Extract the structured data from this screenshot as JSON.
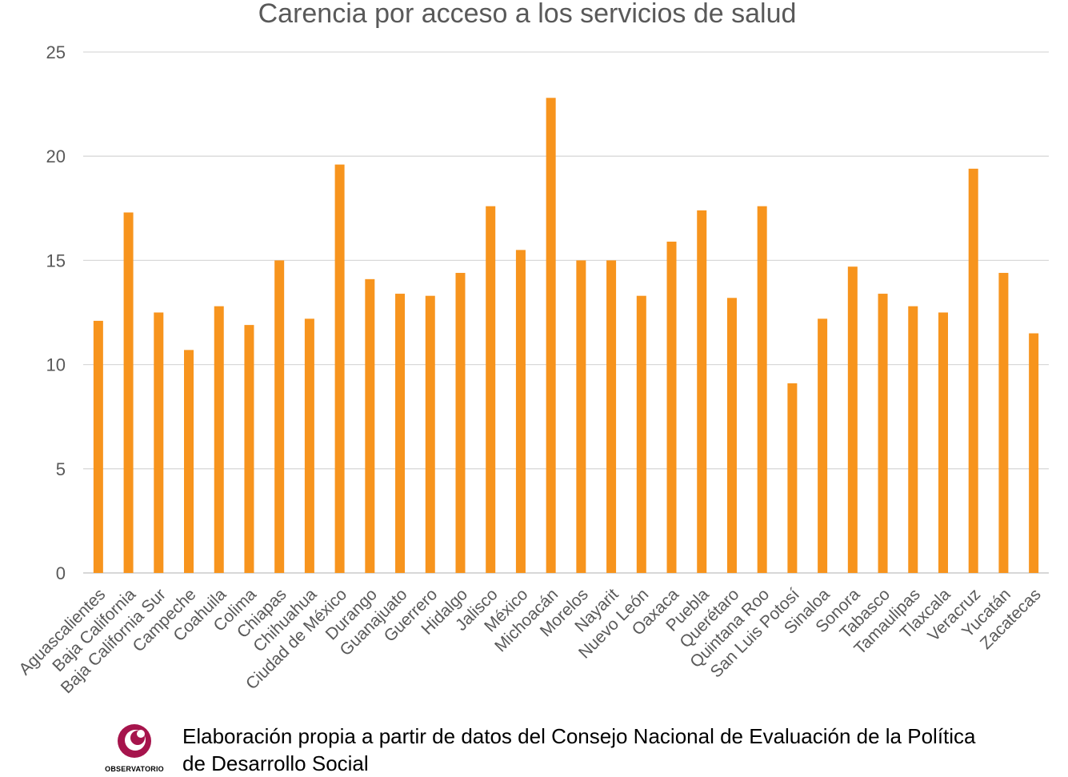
{
  "chart_data": {
    "type": "bar",
    "title": "Carencia por acceso a los servicios de salud",
    "xlabel": "",
    "ylabel": "",
    "ylim": [
      0,
      25
    ],
    "yticks": [
      0,
      5,
      10,
      15,
      20,
      25
    ],
    "grid": true,
    "bar_color": "#f7941d",
    "categories": [
      "Aguascalientes",
      "Baja California",
      "Baja California Sur",
      "Campeche",
      "Coahuila",
      "Colima",
      "Chiapas",
      "Chihuahua",
      "Ciudad de México",
      "Durango",
      "Guanajuato",
      "Guerrero",
      "Hidalgo",
      "Jalisco",
      "México",
      "Michoacán",
      "Morelos",
      "Nayarit",
      "Nuevo León",
      "Oaxaca",
      "Puebla",
      "Querétaro",
      "Quintana Roo",
      "San Luis Potosí",
      "Sinaloa",
      "Sonora",
      "Tabasco",
      "Tamaulipas",
      "Tlaxcala",
      "Veracruz",
      "Yucatán",
      "Zacatecas"
    ],
    "values": [
      12.1,
      17.3,
      12.5,
      10.7,
      12.8,
      11.9,
      15.0,
      12.2,
      19.6,
      14.1,
      13.4,
      13.3,
      14.4,
      17.6,
      15.5,
      22.8,
      15.0,
      15.0,
      13.3,
      15.9,
      17.4,
      13.2,
      17.6,
      9.1,
      12.2,
      14.7,
      13.4,
      12.8,
      12.5,
      19.4,
      14.4,
      11.5
    ]
  },
  "footer": {
    "logo_text": "OBSERVATORIO",
    "source_line1": "Elaboración propia a partir de datos del Consejo Nacional de Evaluación de la Política",
    "source_line2": "de Desarrollo Social"
  }
}
